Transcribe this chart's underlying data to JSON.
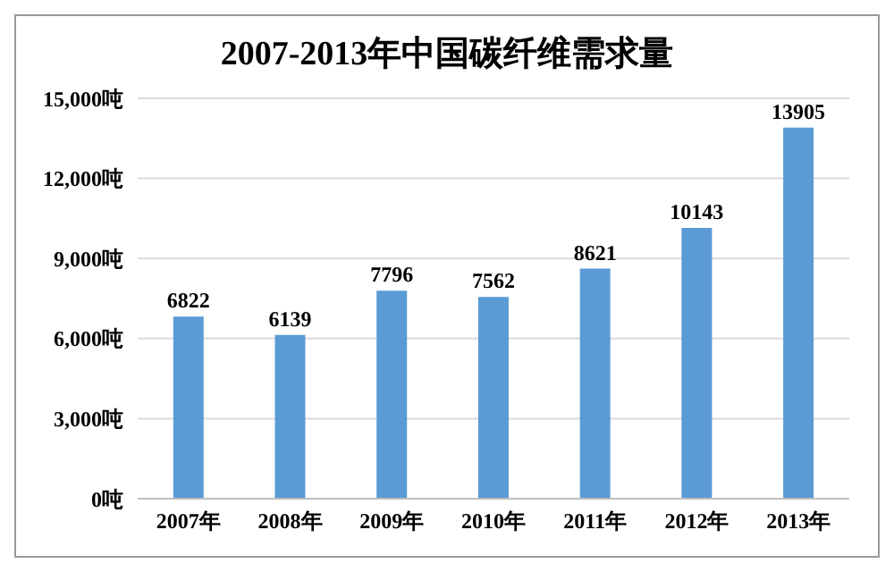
{
  "chart_data": {
    "type": "bar",
    "title": "2007-2013年中国碳纤维需求量",
    "categories": [
      "2007年",
      "2008年",
      "2009年",
      "2010年",
      "2011年",
      "2012年",
      "2013年"
    ],
    "values": [
      6822,
      6139,
      7796,
      7562,
      8621,
      10143,
      13905
    ],
    "color": "#5b9bd5",
    "ylim": [
      0,
      15000
    ],
    "yticks": [
      {
        "value": 0,
        "label": "0吨"
      },
      {
        "value": 3000,
        "label": "3,000吨"
      },
      {
        "value": 6000,
        "label": "6,000吨"
      },
      {
        "value": 9000,
        "label": "9,000吨"
      },
      {
        "value": 12000,
        "label": "12,000吨"
      },
      {
        "value": 15000,
        "label": "15,000吨"
      }
    ],
    "grid": "y",
    "data_labels": true
  }
}
